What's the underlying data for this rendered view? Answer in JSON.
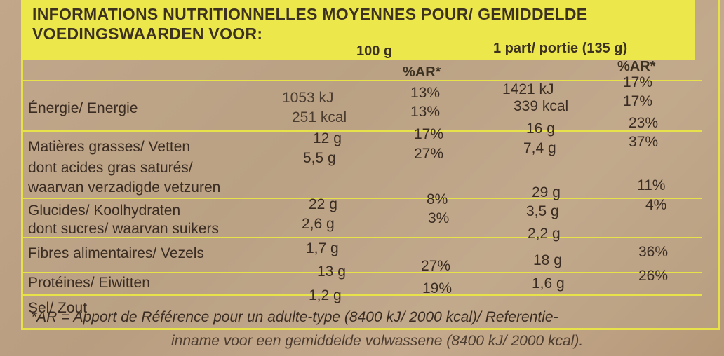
{
  "header": {
    "line1": "INFORMATIONS NUTRITIONNELLES MOYENNES POUR/ GEMIDDELDE",
    "line2": "VOEDINGSWAARDEN VOOR:"
  },
  "columns": {
    "per100": "100 g",
    "ar1": "%AR*",
    "portion": "1 part/ portie (135 g)",
    "ar2": "%AR*"
  },
  "rows": {
    "energy_label": "Énergie/ Energie",
    "energy_kj_100": "1053 kJ",
    "energy_kcal_100": "251 kcal",
    "energy_kj_ar_100": "13%",
    "energy_kcal_ar_100": "13%",
    "energy_kj_portion": "1421 kJ",
    "energy_kcal_portion": "339 kcal",
    "energy_kj_ar_portion": "17%",
    "energy_kcal_ar_portion": "17%",
    "fat_label": "Matières grasses/ Vetten",
    "fat_100": "12 g",
    "fat_ar_100": "17%",
    "fat_portion": "16 g",
    "fat_ar_portion": "23%",
    "satfat_label1": "dont acides gras saturés/",
    "satfat_label2": "waarvan verzadigde vetzuren",
    "satfat_100": "5,5 g",
    "satfat_ar_100": "27%",
    "satfat_portion": "7,4 g",
    "satfat_ar_portion": "37%",
    "carb_label": "Glucides/ Koolhydraten",
    "carb_100": "22 g",
    "carb_ar_100": "8%",
    "carb_portion": "29 g",
    "carb_ar_portion": "11%",
    "sugar_label": "dont sucres/ waarvan suikers",
    "sugar_100": "2,6 g",
    "sugar_ar_100": "3%",
    "sugar_portion": "3,5 g",
    "sugar_ar_portion": "4%",
    "fibre_label": "Fibres alimentaires/ Vezels",
    "fibre_100": "1,7 g",
    "fibre_portion": "2,2 g",
    "protein_label": "Protéines/ Eiwitten",
    "protein_100": "13 g",
    "protein_ar_100": "27%",
    "protein_portion": "18 g",
    "protein_ar_portion": "36%",
    "salt_label": "Sel/ Zout",
    "salt_100": "1,2 g",
    "salt_ar_100": "19%",
    "salt_portion": "1,6 g",
    "salt_ar_portion": "26%"
  },
  "footnote": {
    "line1": "*AR = Apport de Référence pour un adulte-type (8400 kJ/ 2000 kcal)/ Referentie-",
    "line2": "inname voor een gemiddelde volwassene (8400 kJ/ 2000 kcal)."
  },
  "colors": {
    "yellow": "#ece84c",
    "cardboard": "#c3a78b"
  }
}
